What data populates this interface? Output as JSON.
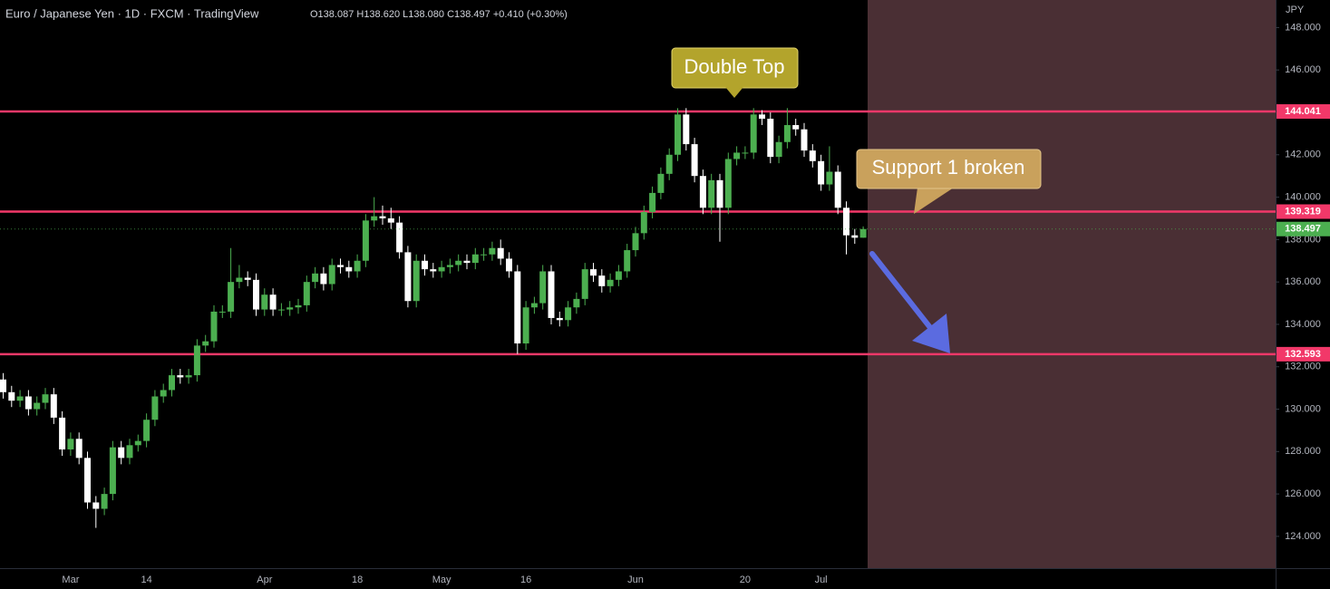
{
  "chart_data": {
    "type": "candlestick",
    "title": "Euro / Japanese Yen · 1D · FXCM · TradingView",
    "subtitle": "O138.087 H138.620 L138.080 C138.497 +0.410 (+0.30%)",
    "ylabel": "JPY",
    "categories": [
      null,
      null,
      null,
      null,
      null,
      null,
      null,
      null,
      "Mar",
      null,
      null,
      null,
      null,
      null,
      null,
      null,
      null,
      "14",
      null,
      null,
      null,
      null,
      null,
      null,
      null,
      null,
      null,
      null,
      null,
      null,
      null,
      "Apr",
      null,
      null,
      null,
      null,
      null,
      null,
      null,
      null,
      null,
      null,
      "18",
      null,
      null,
      null,
      null,
      null,
      null,
      null,
      null,
      null,
      "May",
      null,
      null,
      null,
      null,
      null,
      null,
      null,
      null,
      null,
      "16",
      null,
      null,
      null,
      null,
      null,
      null,
      null,
      null,
      null,
      null,
      null,
      null,
      "Jun",
      null,
      null,
      null,
      null,
      null,
      null,
      null,
      null,
      null,
      null,
      null,
      null,
      "20",
      null,
      null,
      null,
      null,
      null,
      null,
      null,
      null,
      "Jul",
      null,
      null,
      null,
      null,
      null
    ],
    "open": [
      131.4,
      130.8,
      130.4,
      130.6,
      130.0,
      130.3,
      130.7,
      129.6,
      128.1,
      128.6,
      127.7,
      125.6,
      125.3,
      126.0,
      128.2,
      127.7,
      128.3,
      128.5,
      129.5,
      130.6,
      130.9,
      131.6,
      131.5,
      131.6,
      133.0,
      133.2,
      134.6,
      134.6,
      136.0,
      136.2,
      136.1,
      134.7,
      135.4,
      134.7,
      134.7,
      134.8,
      134.9,
      136.0,
      136.4,
      135.9,
      136.8,
      136.7,
      136.5,
      137.0,
      138.9,
      139.1,
      139.0,
      138.8,
      137.4,
      135.1,
      137.0,
      136.6,
      136.5,
      136.7,
      136.8,
      137.0,
      136.9,
      137.3,
      137.3,
      137.6,
      137.1,
      136.5,
      133.1,
      134.8,
      135.0,
      136.5,
      134.3,
      134.2,
      134.8,
      135.2,
      136.6,
      136.3,
      135.8,
      136.1,
      136.5,
      137.5,
      138.3,
      139.3,
      140.2,
      141.1,
      142.0,
      143.9,
      142.5,
      141.0,
      139.5,
      140.8,
      139.5,
      141.8,
      142.1,
      142.1,
      143.9,
      143.7,
      141.9,
      142.6,
      143.4,
      143.2,
      142.2,
      141.7,
      140.6,
      141.2,
      139.5,
      138.2,
      138.087
    ],
    "high": [
      131.7,
      131.1,
      130.9,
      130.9,
      130.6,
      131.0,
      131.0,
      129.9,
      128.9,
      128.9,
      128.0,
      125.9,
      126.3,
      128.5,
      128.5,
      128.6,
      128.8,
      129.8,
      130.9,
      131.2,
      131.9,
      131.9,
      131.9,
      133.3,
      133.5,
      134.9,
      134.9,
      137.6,
      136.8,
      136.5,
      136.4,
      135.7,
      135.7,
      135.0,
      135.1,
      135.2,
      136.3,
      136.7,
      136.7,
      137.1,
      137.1,
      137.0,
      137.3,
      139.2,
      140.0,
      139.6,
      139.5,
      139.1,
      137.7,
      137.3,
      137.3,
      136.9,
      137.0,
      137.1,
      137.3,
      137.3,
      137.6,
      137.6,
      137.9,
      138.0,
      137.4,
      136.8,
      135.1,
      135.3,
      136.8,
      136.8,
      134.6,
      135.1,
      135.5,
      136.9,
      136.9,
      136.6,
      136.4,
      136.8,
      137.8,
      138.6,
      139.6,
      140.5,
      141.4,
      142.3,
      144.2,
      144.2,
      142.8,
      141.3,
      141.1,
      141.1,
      142.1,
      142.4,
      142.4,
      144.2,
      144.1,
      144.0,
      142.9,
      144.2,
      143.7,
      143.5,
      142.5,
      142.0,
      142.4,
      141.5,
      139.8,
      138.5,
      138.62
    ],
    "low": [
      130.5,
      130.1,
      130.1,
      129.7,
      129.7,
      130.0,
      129.3,
      127.8,
      127.8,
      127.4,
      125.3,
      124.4,
      125.0,
      125.7,
      127.4,
      127.4,
      128.0,
      128.2,
      129.2,
      130.3,
      130.6,
      131.2,
      131.2,
      131.3,
      132.7,
      132.9,
      134.3,
      134.3,
      135.7,
      135.8,
      134.4,
      134.4,
      134.4,
      134.4,
      134.4,
      134.5,
      134.6,
      135.7,
      135.6,
      135.6,
      136.4,
      136.2,
      136.2,
      136.7,
      138.6,
      138.7,
      138.5,
      137.1,
      134.8,
      134.8,
      136.3,
      136.2,
      136.2,
      136.4,
      136.5,
      136.6,
      136.6,
      137.0,
      137.0,
      136.8,
      136.2,
      132.6,
      132.8,
      134.5,
      134.7,
      134.0,
      133.9,
      133.9,
      134.5,
      134.9,
      136.0,
      135.5,
      135.5,
      135.8,
      136.2,
      137.2,
      138.0,
      139.0,
      139.9,
      140.8,
      141.7,
      142.2,
      140.7,
      139.2,
      139.2,
      137.9,
      139.2,
      141.5,
      141.8,
      141.8,
      143.4,
      141.6,
      141.6,
      142.3,
      142.9,
      141.9,
      141.4,
      140.3,
      140.3,
      139.2,
      137.3,
      137.8,
      138.08
    ],
    "close": [
      130.8,
      130.4,
      130.6,
      130.0,
      130.3,
      130.7,
      129.6,
      128.1,
      128.6,
      127.7,
      125.6,
      125.3,
      126.0,
      128.2,
      127.7,
      128.3,
      128.5,
      129.5,
      130.6,
      130.9,
      131.6,
      131.5,
      131.6,
      133.0,
      133.2,
      134.6,
      134.6,
      136.0,
      136.2,
      136.1,
      134.7,
      135.4,
      134.7,
      134.7,
      134.8,
      134.9,
      136.0,
      136.4,
      135.9,
      136.8,
      136.7,
      136.5,
      137.0,
      138.9,
      139.1,
      139.0,
      138.8,
      137.4,
      135.1,
      137.0,
      136.6,
      136.5,
      136.7,
      136.8,
      137.0,
      136.9,
      137.3,
      137.3,
      137.6,
      137.1,
      136.5,
      133.1,
      134.8,
      135.0,
      136.5,
      134.3,
      134.2,
      134.8,
      135.2,
      136.6,
      136.3,
      135.8,
      136.1,
      136.5,
      137.5,
      138.3,
      139.3,
      140.2,
      141.1,
      142.0,
      143.9,
      142.5,
      141.0,
      139.5,
      140.8,
      139.5,
      141.8,
      142.1,
      142.1,
      143.9,
      143.7,
      141.9,
      142.6,
      143.4,
      143.2,
      142.2,
      141.7,
      140.6,
      141.2,
      139.5,
      138.2,
      138.087,
      138.497
    ],
    "up_color": "#4caf50",
    "down_color": "#ffffff",
    "ylim": [
      122.5,
      149.3
    ],
    "yticks": [
      {
        "value": 124,
        "label": "124.000"
      },
      {
        "value": 126,
        "label": "126.000"
      },
      {
        "value": 128,
        "label": "128.000"
      },
      {
        "value": 130,
        "label": "130.000"
      },
      {
        "value": 132,
        "label": "132.000"
      },
      {
        "value": 134,
        "label": "134.000"
      },
      {
        "value": 136,
        "label": "136.000"
      },
      {
        "value": 138,
        "label": "138.000"
      },
      {
        "value": 140,
        "label": "140.000"
      },
      {
        "value": 142,
        "label": "142.000"
      },
      {
        "value": 144,
        "label": "144.000"
      },
      {
        "value": 146,
        "label": "146.000"
      },
      {
        "value": 148,
        "label": "148.000"
      }
    ],
    "levels": [
      144.041,
      139.319,
      132.593
    ],
    "level_color": "#f23869",
    "grid": false,
    "annotations": [
      "Double Top",
      "Support 1 broken"
    ]
  }
}
